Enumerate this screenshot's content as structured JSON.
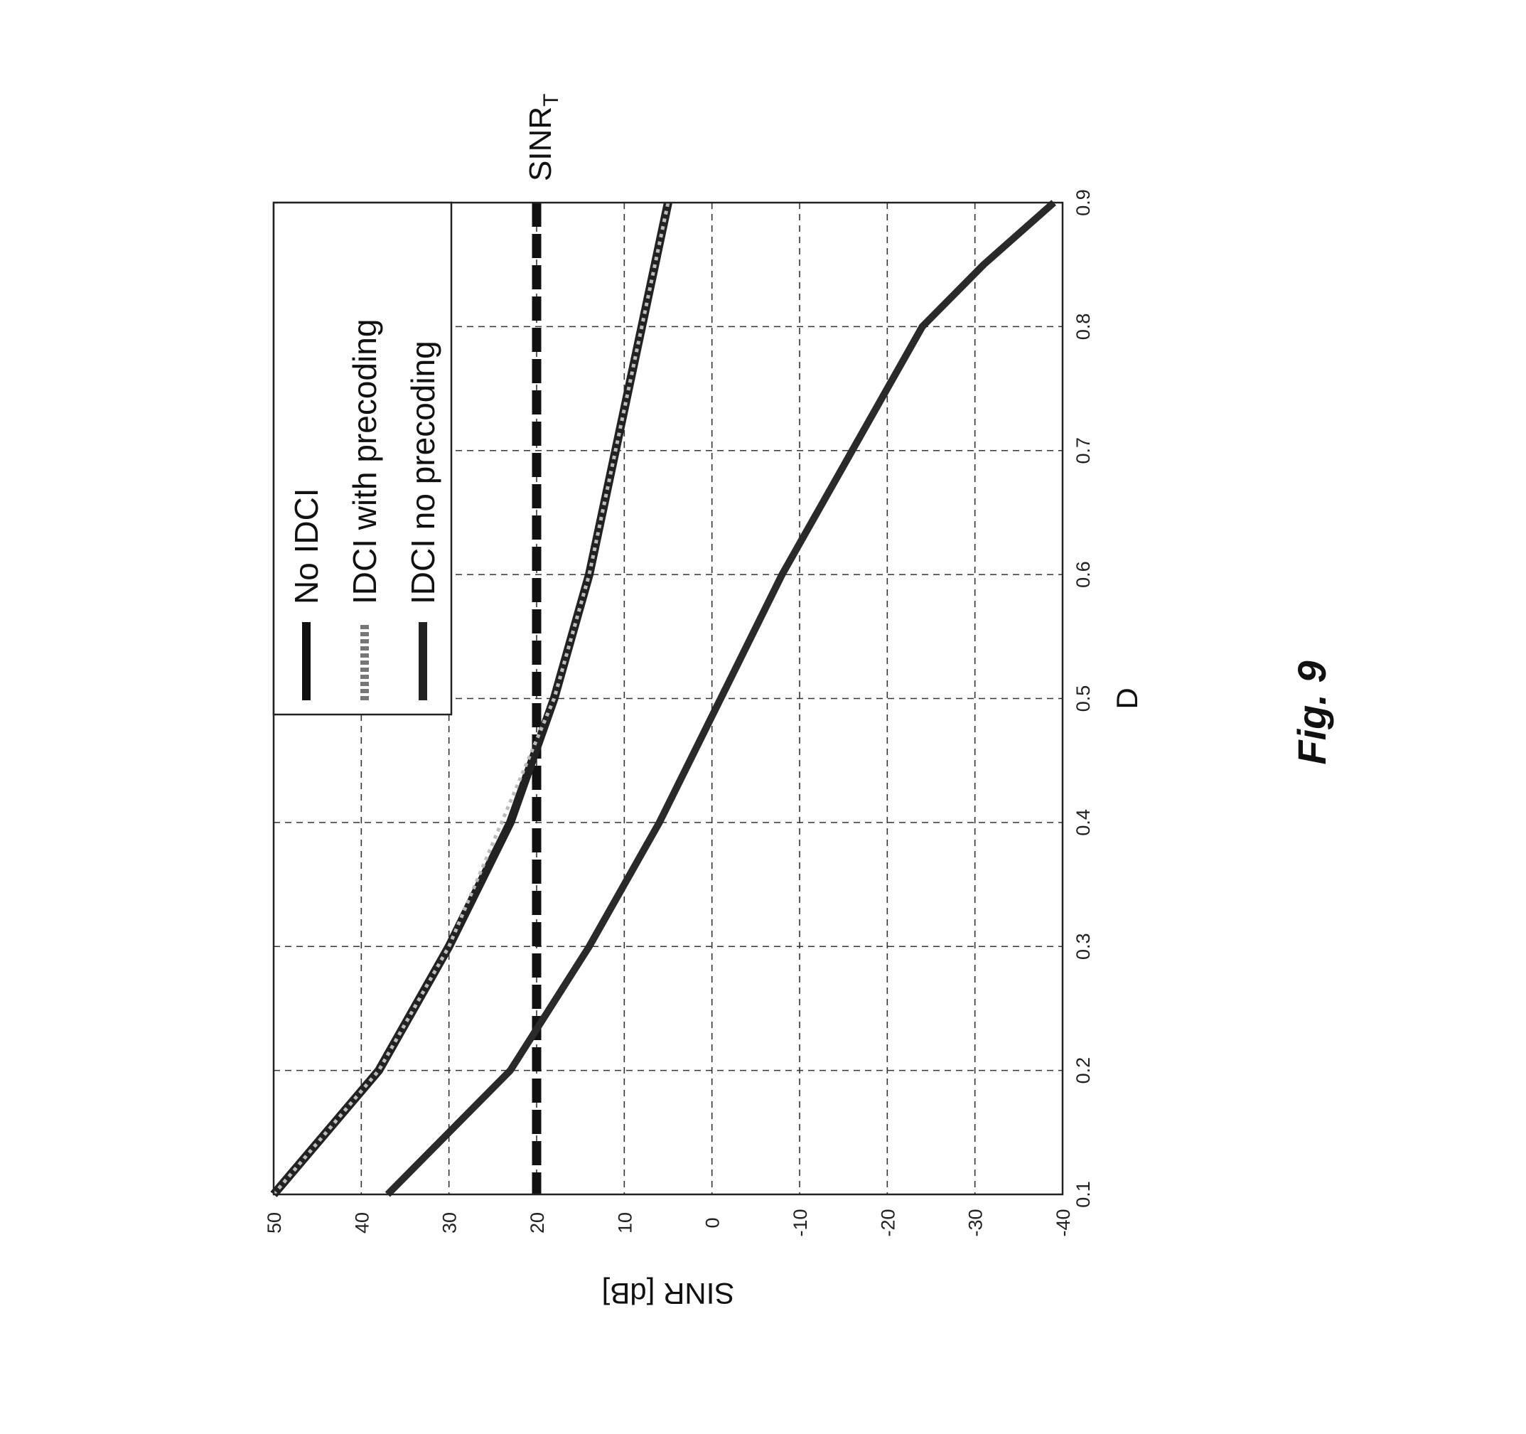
{
  "figure_caption": "Fig. 9",
  "chart_data": {
    "type": "line",
    "orientation": "rotated-90-ccw",
    "xlabel": "D",
    "ylabel": "SINR [dB]",
    "xlim": [
      0.1,
      0.9
    ],
    "ylim": [
      -40,
      50
    ],
    "xticks": [
      "0.1",
      "0.2",
      "0.3",
      "0.4",
      "0.5",
      "0.6",
      "0.7",
      "0.8",
      "0.9"
    ],
    "yticks": [
      "-40",
      "-30",
      "-20",
      "-10",
      "0",
      "10",
      "20",
      "30",
      "40",
      "50"
    ],
    "grid": true,
    "legend_position": "top-right",
    "threshold": {
      "label": "SINR",
      "subscript": "T",
      "value": 20
    },
    "series": [
      {
        "name": "No IDCI",
        "style": "solid",
        "x": [
          0.1,
          0.2,
          0.3,
          0.4,
          0.5,
          0.6,
          0.7,
          0.8,
          0.9
        ],
        "y": [
          50,
          38,
          30,
          23,
          18,
          14,
          11,
          8,
          5
        ]
      },
      {
        "name": "IDCI with precoding",
        "style": "dotted",
        "x": [
          0.1,
          0.2,
          0.3,
          0.4,
          0.5,
          0.6,
          0.7,
          0.8,
          0.9
        ],
        "y": [
          50,
          38,
          30,
          24,
          18,
          14,
          11,
          8,
          5
        ]
      },
      {
        "name": "IDCI no precoding",
        "style": "solid",
        "x": [
          0.1,
          0.2,
          0.3,
          0.4,
          0.5,
          0.6,
          0.7,
          0.8,
          0.85,
          0.9
        ],
        "y": [
          37,
          23,
          14,
          6,
          -1,
          -8,
          -16,
          -24,
          -31,
          -39
        ]
      }
    ]
  }
}
